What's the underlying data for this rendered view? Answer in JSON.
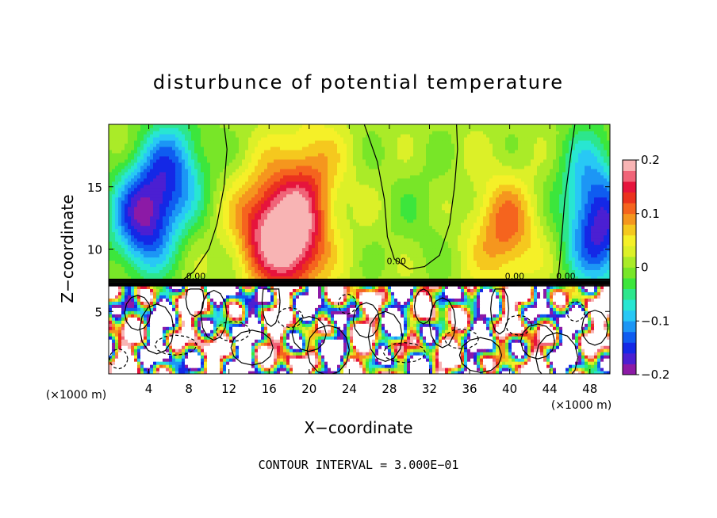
{
  "chart_data": {
    "type": "heatmap",
    "title": "disturbunce of potential temperature",
    "xlabel": "X−coordinate",
    "ylabel": "Z−coordinate",
    "x_unit": "(×1000 m)",
    "z_unit": "(×1000 m)",
    "xlim": [
      0,
      50
    ],
    "ylim": [
      0,
      20
    ],
    "x_ticks": [
      4,
      8,
      12,
      16,
      20,
      24,
      28,
      32,
      36,
      40,
      44,
      48
    ],
    "x_tick_labels": [
      "4",
      "8",
      "12",
      "16",
      "20",
      "24",
      "28",
      "32",
      "36",
      "40",
      "44",
      "48"
    ],
    "y_ticks": [
      5,
      10,
      15
    ],
    "y_tick_labels": [
      "5",
      "10",
      "15"
    ],
    "colorbar": {
      "min": -0.2,
      "max": 0.2,
      "ticks": [
        0.2,
        0.1,
        0,
        -0.1,
        -0.2
      ],
      "tick_labels": [
        "0.2",
        "0.1",
        "0",
        "−0.1",
        "−0.2"
      ],
      "colors": [
        "#8c1aa6",
        "#4b1fd2",
        "#1428e6",
        "#0f5cf0",
        "#1c96f5",
        "#28c8f5",
        "#28e6d2",
        "#2de68c",
        "#3ce63c",
        "#78e628",
        "#aaeb28",
        "#dcf028",
        "#f5f028",
        "#f5c81e",
        "#f5961e",
        "#f5641e",
        "#eb321e",
        "#e6143c",
        "#f06478",
        "#f8b4b4"
      ]
    },
    "contour_interval": 0.3,
    "contour_label": "0.00",
    "series": [
      {
        "kind": "upper-layer-anomaly-blobs",
        "centers": [
          {
            "x": 3.5,
            "z": 12.5,
            "value": -0.18
          },
          {
            "x": 6.5,
            "z": 16.5,
            "value": -0.12
          },
          {
            "x": 18.5,
            "z": 10.5,
            "value": 0.17
          },
          {
            "x": 15.5,
            "z": 12.0,
            "value": 0.12
          },
          {
            "x": 20.0,
            "z": 16.0,
            "value": 0.08
          },
          {
            "x": 31.0,
            "z": 13.0,
            "value": -0.02
          },
          {
            "x": 39.5,
            "z": 11.5,
            "value": 0.1
          },
          {
            "x": 49.0,
            "z": 11.0,
            "value": -0.16
          },
          {
            "x": 48.0,
            "z": 16.0,
            "value": -0.08
          }
        ]
      }
    ]
  },
  "footer": {
    "contour_interval_text": "CONTOUR INTERVAL = 3.000E−01"
  }
}
